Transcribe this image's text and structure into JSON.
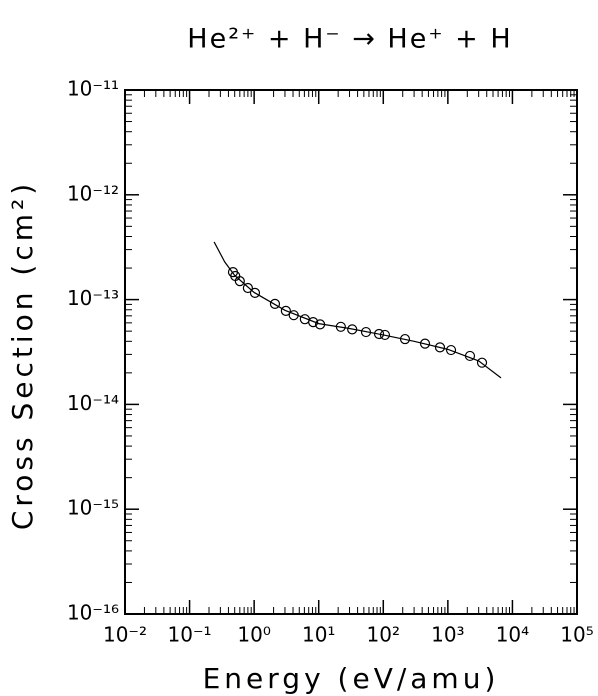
{
  "chart_data": {
    "type": "line",
    "title": "He²⁺ + H⁻ → He⁺ + H",
    "x_label": "Energy (eV/amu)",
    "y_label": "Cross Section (cm²)",
    "xscale": "log",
    "yscale": "log",
    "minor_ticks": true,
    "xlim": [
      0.01,
      100000
    ],
    "xticks": [
      {
        "value": 0.01,
        "label": "10⁻²"
      },
      {
        "value": 0.1,
        "label": "10⁻¹"
      },
      {
        "value": 1,
        "label": "10⁰"
      },
      {
        "value": 10,
        "label": "10¹"
      },
      {
        "value": 100,
        "label": "10²"
      },
      {
        "value": 1000,
        "label": "10³"
      },
      {
        "value": 10000,
        "label": "10⁴"
      },
      {
        "value": 100000,
        "label": "10⁵"
      }
    ],
    "ylim": [
      1e-16,
      1e-11
    ],
    "yticks": [
      {
        "value": 1e-16,
        "label": "10⁻¹⁶"
      },
      {
        "value": 1e-15,
        "label": "10⁻¹⁵"
      },
      {
        "value": 1e-14,
        "label": "10⁻¹⁴"
      },
      {
        "value": 1e-13,
        "label": "10⁻¹³"
      },
      {
        "value": 1e-12,
        "label": "10⁻¹²"
      },
      {
        "value": 1e-11,
        "label": "10⁻¹¹"
      }
    ],
    "series": [
      {
        "mode": "line",
        "color": "#000000",
        "x": [
          0.24,
          0.35,
          0.5,
          1,
          3,
          10,
          30,
          100,
          300,
          1000,
          3000,
          6650
        ],
        "values": [
          3.55e-13,
          2.29e-13,
          1.7e-13,
          1.17e-13,
          7.9e-14,
          5.9e-14,
          5.3e-14,
          4.6e-14,
          4e-14,
          3.35e-14,
          2.6e-14,
          1.79e-14
        ]
      },
      {
        "mode": "markers",
        "color": "#000000",
        "x": [
          0.47,
          0.51,
          0.6,
          0.8,
          1.03,
          2.1,
          3.1,
          4.1,
          6.1,
          8.2,
          10.5,
          22,
          33,
          54,
          86,
          106,
          217,
          443,
          755,
          1120,
          2200,
          3380
        ],
        "values": [
          1.83e-13,
          1.68e-13,
          1.5e-13,
          1.29e-13,
          1.16e-13,
          9.1e-14,
          7.8e-14,
          7.1e-14,
          6.5e-14,
          6.1e-14,
          5.8e-14,
          5.5e-14,
          5.2e-14,
          4.9e-14,
          4.7e-14,
          4.6e-14,
          4.2e-14,
          3.8e-14,
          3.5e-14,
          3.3e-14,
          2.9e-14,
          2.5e-14
        ]
      }
    ]
  }
}
